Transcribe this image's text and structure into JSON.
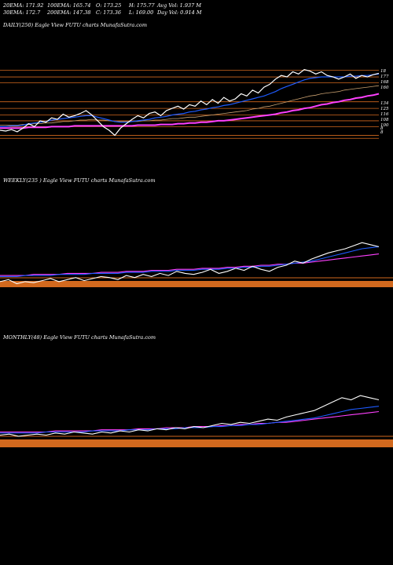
{
  "header": {
    "row1": [
      "20EMA: 171.92",
      "100EMA: 165.74",
      "O: 173.25",
      "H: 175.77",
      "Avg Vol: 1.937  M"
    ],
    "row2": [
      "30EMA: 172.7",
      "200EMA: 147.38",
      "C: 173.36",
      "L: 169.00",
      "Day Vol: 0.914  M"
    ]
  },
  "panels": {
    "daily": {
      "label": "DAILY(250) Eagle   View  FUTU charts MunafaSutra.com"
    },
    "weekly": {
      "label": "WEEKLY(235                    ) Eagle   View  FUTU charts MunafaSutra.com"
    },
    "monthly": {
      "label": "MONTHLY(48) Eagle   View  FUTU charts MunafaSutra.com"
    }
  },
  "colors": {
    "background": "#000000",
    "price": "#ffffff",
    "ema_short": "#1e5bff",
    "ema_mid": "#c8a070",
    "ema_long": "#ff40ff",
    "levels": "#d2691e",
    "volume_band": "#d2691e"
  },
  "chart_data": [
    {
      "type": "line",
      "title": "DAILY(250)",
      "right_axis_labels": [
        "18",
        "177",
        "168",
        "160",
        "134",
        "125",
        "116",
        "108",
        "100",
        "8",
        "8"
      ],
      "series": [
        {
          "values": [
            95,
            94,
            96,
            93,
            98,
            104,
            100,
            108,
            106,
            112,
            110,
            117,
            113,
            115,
            118,
            122,
            116,
            108,
            100,
            95,
            88,
            98,
            104,
            110,
            115,
            112,
            118,
            120,
            115,
            122,
            125,
            128,
            124,
            130,
            128,
            135,
            130,
            137,
            132,
            140,
            135,
            138,
            145,
            142,
            150,
            146,
            154,
            158,
            165,
            170,
            168,
            175,
            172,
            178,
            176,
            172,
            175,
            170,
            168,
            165,
            168,
            172,
            166,
            170,
            168,
            171,
            173
          ]
        },
        {
          "values": [
            100,
            100,
            101,
            101,
            102,
            104,
            105,
            106,
            107,
            109,
            110,
            111,
            112,
            113,
            114,
            115,
            115,
            113,
            111,
            109,
            107,
            106,
            106,
            107,
            108,
            109,
            110,
            112,
            113,
            114,
            116,
            117,
            118,
            120,
            121,
            123,
            124,
            126,
            127,
            129,
            130,
            132,
            134,
            136,
            138,
            140,
            142,
            145,
            148,
            152,
            155,
            158,
            161,
            164,
            166,
            167,
            168,
            168,
            168,
            168,
            168,
            169,
            169,
            170,
            170,
            171,
            172
          ]
        },
        {
          "values": [
            102,
            102,
            102,
            102,
            103,
            103,
            104,
            104,
            105,
            105,
            106,
            107,
            107,
            108,
            109,
            109,
            110,
            109,
            109,
            108,
            107,
            107,
            107,
            107,
            107,
            108,
            108,
            109,
            109,
            110,
            111,
            111,
            112,
            113,
            113,
            114,
            115,
            116,
            117,
            118,
            119,
            120,
            121,
            122,
            124,
            125,
            127,
            128,
            130,
            132,
            134,
            136,
            138,
            140,
            142,
            143,
            145,
            146,
            147,
            148,
            150,
            151,
            152,
            153,
            154,
            155,
            156
          ]
        },
        {
          "values": [
            98,
            98,
            98,
            98,
            98,
            99,
            99,
            99,
            99,
            100,
            100,
            100,
            100,
            101,
            101,
            101,
            101,
            101,
            101,
            101,
            101,
            101,
            101,
            101,
            102,
            102,
            102,
            102,
            103,
            103,
            103,
            104,
            104,
            105,
            105,
            106,
            106,
            107,
            108,
            108,
            109,
            110,
            111,
            112,
            113,
            114,
            115,
            116,
            117,
            119,
            120,
            122,
            123,
            125,
            126,
            128,
            130,
            131,
            133,
            134,
            136,
            137,
            139,
            140,
            142,
            143,
            145
          ]
        }
      ],
      "levels": [
        177,
        168,
        160,
        134,
        125,
        116,
        108,
        100,
        88,
        84
      ]
    },
    {
      "type": "line",
      "title": "WEEKLY(235)",
      "series": [
        {
          "values": [
            50,
            52,
            48,
            50,
            49,
            51,
            53,
            50,
            52,
            54,
            51,
            53,
            55,
            54,
            52,
            56,
            54,
            57,
            55,
            58,
            56,
            60,
            58,
            57,
            59,
            62,
            58,
            60,
            63,
            61,
            65,
            62,
            60,
            64,
            66,
            70,
            68,
            72,
            75,
            78,
            80,
            82,
            85,
            88,
            86,
            84
          ]
        },
        {
          "values": [
            55,
            55,
            55,
            56,
            56,
            56,
            56,
            57,
            57,
            57,
            57,
            58,
            58,
            58,
            58,
            59,
            59,
            59,
            60,
            60,
            60,
            61,
            61,
            61,
            62,
            62,
            62,
            63,
            63,
            64,
            64,
            65,
            65,
            66,
            67,
            68,
            69,
            70,
            72,
            74,
            76,
            78,
            80,
            82,
            83,
            84
          ]
        },
        {
          "values": [
            56,
            56,
            56,
            56,
            57,
            57,
            57,
            57,
            58,
            58,
            58,
            58,
            59,
            59,
            59,
            60,
            60,
            60,
            61,
            61,
            61,
            62,
            62,
            62,
            63,
            63,
            63,
            64,
            64,
            65,
            65,
            66,
            66,
            67,
            67,
            68,
            68,
            69,
            70,
            71,
            72,
            73,
            74,
            75,
            76,
            77
          ]
        }
      ]
    },
    {
      "type": "line",
      "title": "MONTHLY(48)",
      "series": [
        {
          "values": [
            55,
            56,
            54,
            55,
            56,
            55,
            57,
            56,
            58,
            57,
            56,
            58,
            57,
            59,
            58,
            60,
            59,
            61,
            60,
            62,
            61,
            63,
            62,
            64,
            66,
            65,
            67,
            66,
            68,
            70,
            69,
            72,
            74,
            76,
            78,
            82,
            86,
            90,
            88,
            92,
            90,
            88
          ]
        },
        {
          "values": [
            57,
            57,
            57,
            57,
            57,
            58,
            58,
            58,
            58,
            58,
            59,
            59,
            59,
            59,
            60,
            60,
            60,
            61,
            61,
            61,
            62,
            62,
            62,
            63,
            63,
            64,
            64,
            65,
            65,
            66,
            67,
            68,
            69,
            70,
            71,
            73,
            75,
            77,
            79,
            80,
            81,
            82
          ]
        },
        {
          "values": [
            58,
            58,
            58,
            58,
            58,
            58,
            59,
            59,
            59,
            59,
            59,
            60,
            60,
            60,
            60,
            61,
            61,
            61,
            62,
            62,
            62,
            63,
            63,
            63,
            64,
            64,
            65,
            65,
            66,
            66,
            67,
            67,
            68,
            69,
            70,
            71,
            72,
            73,
            74,
            75,
            76,
            77
          ]
        }
      ]
    }
  ]
}
